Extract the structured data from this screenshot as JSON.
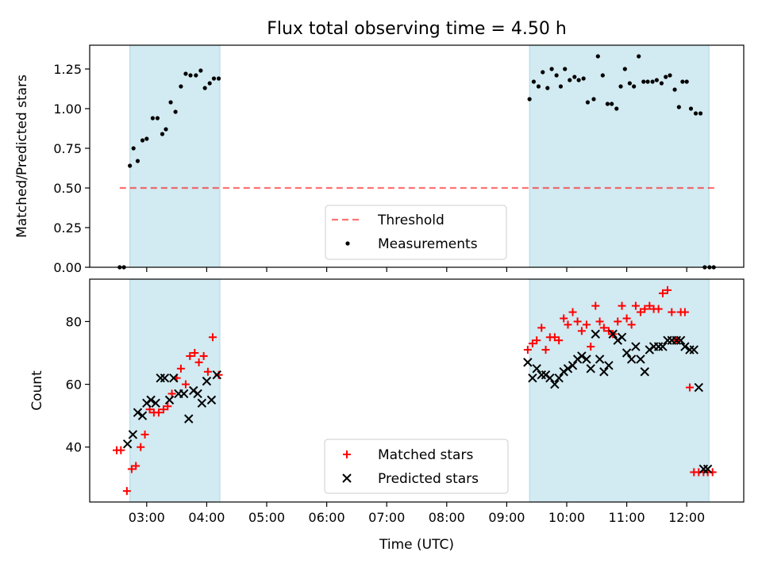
{
  "title": "Flux total observing time = 4.50 h",
  "colors": {
    "band": "#add8e6",
    "threshold": "#ff0000",
    "matched": "#ff0000",
    "predicted": "#000000",
    "measurement": "#000000"
  },
  "chart_data": [
    {
      "type": "scatter",
      "ylabel": "Matched/Predicted stars",
      "xlim": [
        2.05,
        12.95
      ],
      "ylim": [
        0,
        1.4
      ],
      "yticks": [
        0.0,
        0.25,
        0.5,
        0.75,
        1.0,
        1.25
      ],
      "ytick_labels": [
        "0.00",
        "0.25",
        "0.50",
        "0.75",
        "1.00",
        "1.25"
      ],
      "grid": false,
      "legend_position": "bottom-center",
      "bands": [
        [
          2.72,
          4.22
        ],
        [
          9.38,
          12.37
        ]
      ],
      "threshold": {
        "name": "Threshold",
        "y": 0.5,
        "x": [
          2.55,
          12.5
        ]
      },
      "series": [
        {
          "name": "Measurements",
          "x": [
            2.55,
            2.62,
            2.72,
            2.78,
            2.85,
            2.93,
            3.0,
            3.1,
            3.18,
            3.26,
            3.32,
            3.4,
            3.48,
            3.57,
            3.65,
            3.73,
            3.82,
            3.9,
            3.97,
            4.05,
            4.12,
            4.2,
            9.38,
            9.45,
            9.53,
            9.6,
            9.68,
            9.75,
            9.83,
            9.9,
            9.97,
            10.05,
            10.13,
            10.2,
            10.28,
            10.35,
            10.45,
            10.52,
            10.6,
            10.68,
            10.75,
            10.83,
            10.9,
            10.97,
            11.05,
            11.12,
            11.2,
            11.28,
            11.35,
            11.43,
            11.5,
            11.58,
            11.65,
            11.72,
            11.8,
            11.87,
            11.93,
            12.0,
            12.07,
            12.15,
            12.23,
            12.3,
            12.38,
            12.45
          ],
          "y": [
            0.0,
            0.0,
            0.64,
            0.75,
            0.67,
            0.8,
            0.81,
            0.94,
            0.94,
            0.84,
            0.87,
            1.04,
            0.98,
            1.14,
            1.22,
            1.21,
            1.21,
            1.24,
            1.13,
            1.16,
            1.19,
            1.19,
            1.06,
            1.17,
            1.14,
            1.23,
            1.13,
            1.25,
            1.21,
            1.14,
            1.25,
            1.18,
            1.2,
            1.18,
            1.19,
            1.04,
            1.06,
            1.33,
            1.21,
            1.03,
            1.03,
            1.0,
            1.14,
            1.25,
            1.16,
            1.14,
            1.33,
            1.17,
            1.17,
            1.17,
            1.18,
            1.16,
            1.2,
            1.21,
            1.12,
            1.01,
            1.17,
            1.17,
            1.0,
            0.97,
            0.97,
            0.0,
            0.0,
            0.0
          ]
        }
      ],
      "legend": [
        "Threshold",
        "Measurements"
      ]
    },
    {
      "type": "scatter",
      "xlabel": "Time (UTC)",
      "ylabel": "Count",
      "xlim": [
        2.05,
        12.95
      ],
      "ylim": [
        22.5,
        93.5
      ],
      "yticks": [
        40,
        60,
        80
      ],
      "ytick_labels": [
        "40",
        "60",
        "80"
      ],
      "xticks": [
        3,
        4,
        5,
        6,
        7,
        8,
        9,
        10,
        11,
        12
      ],
      "xtick_labels": [
        "03:00",
        "04:00",
        "05:00",
        "06:00",
        "07:00",
        "08:00",
        "09:00",
        "10:00",
        "11:00",
        "12:00"
      ],
      "grid": false,
      "legend_position": "bottom-center",
      "bands": [
        [
          2.72,
          4.22
        ],
        [
          9.38,
          12.37
        ]
      ],
      "series": [
        {
          "name": "Matched stars",
          "marker": "plus",
          "x": [
            2.5,
            2.57,
            2.67,
            2.75,
            2.82,
            2.9,
            2.97,
            3.05,
            3.12,
            3.2,
            3.28,
            3.35,
            3.42,
            3.5,
            3.57,
            3.65,
            3.72,
            3.8,
            3.87,
            3.95,
            4.02,
            4.1,
            4.2,
            9.35,
            9.43,
            9.5,
            9.58,
            9.65,
            9.72,
            9.8,
            9.87,
            9.95,
            10.02,
            10.1,
            10.18,
            10.25,
            10.33,
            10.4,
            10.48,
            10.55,
            10.62,
            10.7,
            10.77,
            10.85,
            10.92,
            11.0,
            11.08,
            11.15,
            11.23,
            11.3,
            11.38,
            11.45,
            11.53,
            11.6,
            11.68,
            11.75,
            11.83,
            11.9,
            11.97,
            12.05,
            12.12,
            12.2,
            12.28,
            12.35,
            12.43
          ],
          "y": [
            39,
            39,
            26,
            33,
            34,
            40,
            44,
            52,
            51,
            51,
            52,
            53,
            57,
            62,
            65,
            60,
            69,
            70,
            67,
            69,
            64,
            75,
            63,
            71,
            73,
            74,
            78,
            71,
            75,
            75,
            74,
            81,
            79,
            83,
            80,
            77,
            79,
            72,
            85,
            80,
            78,
            77,
            76,
            80,
            85,
            81,
            79,
            85,
            83,
            84,
            85,
            84,
            84,
            89,
            90,
            83,
            74,
            83,
            83,
            59,
            32,
            32,
            32,
            32,
            32
          ]
        },
        {
          "name": "Predicted stars",
          "marker": "x",
          "x": [
            2.68,
            2.77,
            2.85,
            2.93,
            3.0,
            3.07,
            3.15,
            3.23,
            3.3,
            3.38,
            3.45,
            3.53,
            3.62,
            3.7,
            3.78,
            3.85,
            3.92,
            4.0,
            4.08,
            4.17,
            9.35,
            9.43,
            9.5,
            9.58,
            9.65,
            9.72,
            9.8,
            9.87,
            9.95,
            10.02,
            10.1,
            10.18,
            10.25,
            10.33,
            10.4,
            10.48,
            10.55,
            10.62,
            10.7,
            10.77,
            10.85,
            10.92,
            11.0,
            11.08,
            11.15,
            11.23,
            11.3,
            11.38,
            11.45,
            11.53,
            11.6,
            11.68,
            11.75,
            11.83,
            11.9,
            11.97,
            12.05,
            12.12,
            12.2,
            12.28,
            12.35
          ],
          "y": [
            41,
            44,
            51,
            50,
            54,
            55,
            54,
            62,
            62,
            55,
            62,
            57,
            57,
            49,
            58,
            57,
            54,
            61,
            55,
            63,
            67,
            62,
            65,
            63,
            63,
            62,
            60,
            62,
            64,
            65,
            66,
            68,
            69,
            68,
            65,
            76,
            68,
            64,
            66,
            76,
            74,
            75,
            70,
            68,
            72,
            68,
            64,
            71,
            72,
            72,
            72,
            74,
            74,
            74,
            74,
            72,
            71,
            71,
            59,
            33,
            33
          ]
        }
      ],
      "legend": [
        "Matched stars",
        "Predicted stars"
      ]
    }
  ]
}
